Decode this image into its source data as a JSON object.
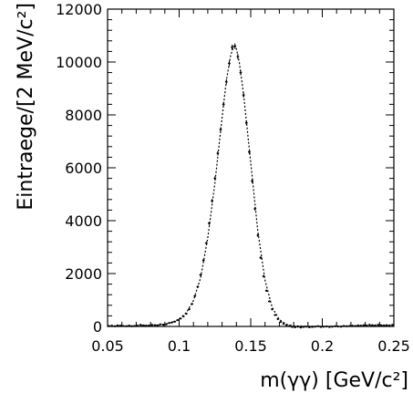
{
  "chart_data": {
    "type": "scatter",
    "title": "",
    "xlabel": "m(γγ) [GeV/c²]",
    "ylabel": "Eintraege/[2 MeV/c²]",
    "xlim": [
      0.05,
      0.25
    ],
    "ylim": [
      0,
      12000
    ],
    "grid": false,
    "legend": "none",
    "x_ticks": [
      {
        "value": 0.05,
        "label": "0.05"
      },
      {
        "value": 0.1,
        "label": "0.1"
      },
      {
        "value": 0.15,
        "label": "0.15"
      },
      {
        "value": 0.2,
        "label": "0.2"
      },
      {
        "value": 0.25,
        "label": "0.25"
      }
    ],
    "y_ticks": [
      {
        "value": 0,
        "label": "0"
      },
      {
        "value": 2000,
        "label": "2000"
      },
      {
        "value": 4000,
        "label": "4000"
      },
      {
        "value": 6000,
        "label": "6000"
      },
      {
        "value": 8000,
        "label": "8000"
      },
      {
        "value": 10000,
        "label": "10000"
      },
      {
        "value": 12000,
        "label": "12000"
      }
    ],
    "series": [
      {
        "style": "points-with-error-bars",
        "color": "#000000",
        "points": [
          {
            "x": 0.051,
            "y": 20
          },
          {
            "x": 0.053,
            "y": 30
          },
          {
            "x": 0.055,
            "y": 10
          },
          {
            "x": 0.057,
            "y": 40
          },
          {
            "x": 0.059,
            "y": 30
          },
          {
            "x": 0.061,
            "y": 20
          },
          {
            "x": 0.063,
            "y": 10
          },
          {
            "x": 0.065,
            "y": 30
          },
          {
            "x": 0.067,
            "y": 10
          },
          {
            "x": 0.069,
            "y": 20
          },
          {
            "x": 0.071,
            "y": 30
          },
          {
            "x": 0.073,
            "y": 60
          },
          {
            "x": 0.075,
            "y": 40
          },
          {
            "x": 0.077,
            "y": 30
          },
          {
            "x": 0.079,
            "y": 30
          },
          {
            "x": 0.081,
            "y": 60
          },
          {
            "x": 0.083,
            "y": 50
          },
          {
            "x": 0.085,
            "y": 40
          },
          {
            "x": 0.087,
            "y": 80
          },
          {
            "x": 0.089,
            "y": 60
          },
          {
            "x": 0.091,
            "y": 80
          },
          {
            "x": 0.093,
            "y": 130
          },
          {
            "x": 0.095,
            "y": 150
          },
          {
            "x": 0.097,
            "y": 180
          },
          {
            "x": 0.099,
            "y": 240
          },
          {
            "x": 0.101,
            "y": 300
          },
          {
            "x": 0.103,
            "y": 380
          },
          {
            "x": 0.105,
            "y": 480
          },
          {
            "x": 0.107,
            "y": 650
          },
          {
            "x": 0.109,
            "y": 850
          },
          {
            "x": 0.111,
            "y": 1150
          },
          {
            "x": 0.113,
            "y": 1500
          },
          {
            "x": 0.115,
            "y": 1950
          },
          {
            "x": 0.117,
            "y": 2500
          },
          {
            "x": 0.119,
            "y": 3150
          },
          {
            "x": 0.121,
            "y": 3900
          },
          {
            "x": 0.123,
            "y": 4750
          },
          {
            "x": 0.125,
            "y": 5600
          },
          {
            "x": 0.127,
            "y": 6550
          },
          {
            "x": 0.129,
            "y": 7450
          },
          {
            "x": 0.131,
            "y": 8400
          },
          {
            "x": 0.133,
            "y": 9250
          },
          {
            "x": 0.135,
            "y": 9950
          },
          {
            "x": 0.137,
            "y": 10550
          },
          {
            "x": 0.139,
            "y": 10600
          },
          {
            "x": 0.141,
            "y": 10200
          },
          {
            "x": 0.143,
            "y": 9600
          },
          {
            "x": 0.145,
            "y": 8750
          },
          {
            "x": 0.147,
            "y": 7700
          },
          {
            "x": 0.149,
            "y": 6600
          },
          {
            "x": 0.151,
            "y": 5500
          },
          {
            "x": 0.153,
            "y": 4450
          },
          {
            "x": 0.155,
            "y": 3450
          },
          {
            "x": 0.157,
            "y": 2600
          },
          {
            "x": 0.159,
            "y": 1900
          },
          {
            "x": 0.161,
            "y": 1350
          },
          {
            "x": 0.163,
            "y": 950
          },
          {
            "x": 0.165,
            "y": 650
          },
          {
            "x": 0.167,
            "y": 430
          },
          {
            "x": 0.169,
            "y": 280
          },
          {
            "x": 0.171,
            "y": 170
          },
          {
            "x": 0.173,
            "y": 100
          },
          {
            "x": 0.175,
            "y": 50
          },
          {
            "x": 0.177,
            "y": 20
          },
          {
            "x": 0.179,
            "y": -20
          },
          {
            "x": 0.181,
            "y": -30
          },
          {
            "x": 0.183,
            "y": -10
          },
          {
            "x": 0.185,
            "y": -40
          },
          {
            "x": 0.187,
            "y": -20
          },
          {
            "x": 0.189,
            "y": -10
          },
          {
            "x": 0.191,
            "y": -30
          },
          {
            "x": 0.193,
            "y": -20
          },
          {
            "x": 0.195,
            "y": -10
          },
          {
            "x": 0.197,
            "y": 10
          },
          {
            "x": 0.199,
            "y": -20
          },
          {
            "x": 0.201,
            "y": -10
          },
          {
            "x": 0.203,
            "y": 0
          },
          {
            "x": 0.205,
            "y": -20
          },
          {
            "x": 0.207,
            "y": -10
          },
          {
            "x": 0.209,
            "y": 10
          },
          {
            "x": 0.211,
            "y": 0
          },
          {
            "x": 0.213,
            "y": -10
          },
          {
            "x": 0.215,
            "y": 20
          },
          {
            "x": 0.217,
            "y": 10
          },
          {
            "x": 0.219,
            "y": 20
          },
          {
            "x": 0.221,
            "y": 30
          },
          {
            "x": 0.223,
            "y": 20
          },
          {
            "x": 0.225,
            "y": 40
          },
          {
            "x": 0.227,
            "y": 30
          },
          {
            "x": 0.229,
            "y": 50
          },
          {
            "x": 0.231,
            "y": 40
          },
          {
            "x": 0.233,
            "y": 60
          },
          {
            "x": 0.235,
            "y": 50
          },
          {
            "x": 0.237,
            "y": 40
          },
          {
            "x": 0.239,
            "y": 60
          },
          {
            "x": 0.241,
            "y": 50
          },
          {
            "x": 0.243,
            "y": 40
          },
          {
            "x": 0.245,
            "y": 50
          },
          {
            "x": 0.247,
            "y": 40
          },
          {
            "x": 0.249,
            "y": 60
          }
        ]
      },
      {
        "style": "dotted-fit-curve",
        "color": "#000000",
        "points": [
          {
            "x": 0.05,
            "y": 15
          },
          {
            "x": 0.06,
            "y": 15
          },
          {
            "x": 0.07,
            "y": 25
          },
          {
            "x": 0.08,
            "y": 40
          },
          {
            "x": 0.085,
            "y": 55
          },
          {
            "x": 0.09,
            "y": 85
          },
          {
            "x": 0.095,
            "y": 150
          },
          {
            "x": 0.1,
            "y": 280
          },
          {
            "x": 0.105,
            "y": 520
          },
          {
            "x": 0.11,
            "y": 980
          },
          {
            "x": 0.115,
            "y": 1850
          },
          {
            "x": 0.12,
            "y": 3350
          },
          {
            "x": 0.125,
            "y": 5450
          },
          {
            "x": 0.13,
            "y": 7900
          },
          {
            "x": 0.133,
            "y": 9300
          },
          {
            "x": 0.136,
            "y": 10250
          },
          {
            "x": 0.138,
            "y": 10600
          },
          {
            "x": 0.14,
            "y": 10500
          },
          {
            "x": 0.142,
            "y": 10000
          },
          {
            "x": 0.145,
            "y": 8800
          },
          {
            "x": 0.15,
            "y": 6200
          },
          {
            "x": 0.155,
            "y": 3600
          },
          {
            "x": 0.16,
            "y": 1750
          },
          {
            "x": 0.165,
            "y": 720
          },
          {
            "x": 0.17,
            "y": 260
          },
          {
            "x": 0.175,
            "y": 80
          },
          {
            "x": 0.18,
            "y": 20
          },
          {
            "x": 0.19,
            "y": 5
          },
          {
            "x": 0.2,
            "y": 5
          },
          {
            "x": 0.21,
            "y": 8
          },
          {
            "x": 0.22,
            "y": 12
          },
          {
            "x": 0.23,
            "y": 18
          },
          {
            "x": 0.24,
            "y": 22
          },
          {
            "x": 0.25,
            "y": 25
          }
        ]
      }
    ]
  }
}
